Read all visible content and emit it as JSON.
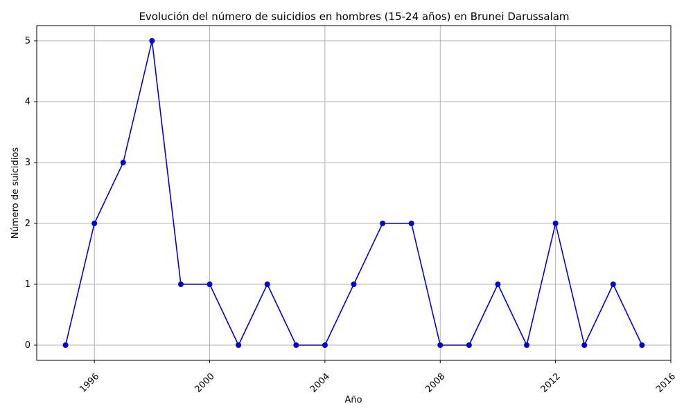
{
  "chart_data": {
    "type": "line",
    "title": "Evolución del número de suicidios en hombres (15-24 años) en Brunei Darussalam",
    "xlabel": "Año",
    "ylabel": "Número de suicidios",
    "x_ticks": [
      "1996",
      "2000",
      "2004",
      "2008",
      "2012",
      "2016"
    ],
    "y_ticks": [
      "0",
      "1",
      "2",
      "3",
      "4",
      "5"
    ],
    "xlim": [
      1994,
      2016
    ],
    "ylim": [
      -0.25,
      5.25
    ],
    "grid": true,
    "series": [
      {
        "color": "#0000dd",
        "marker": "circle",
        "x": [
          1995,
          1996,
          1997,
          1998,
          1999,
          2000,
          2001,
          2002,
          2003,
          2004,
          2005,
          2006,
          2007,
          2008,
          2009,
          2010,
          2011,
          2012,
          2013,
          2014,
          2015
        ],
        "y": [
          0,
          2,
          3,
          5,
          1,
          1,
          0,
          1,
          0,
          0,
          1,
          2,
          2,
          0,
          0,
          1,
          0,
          2,
          0,
          1,
          0
        ]
      }
    ]
  }
}
